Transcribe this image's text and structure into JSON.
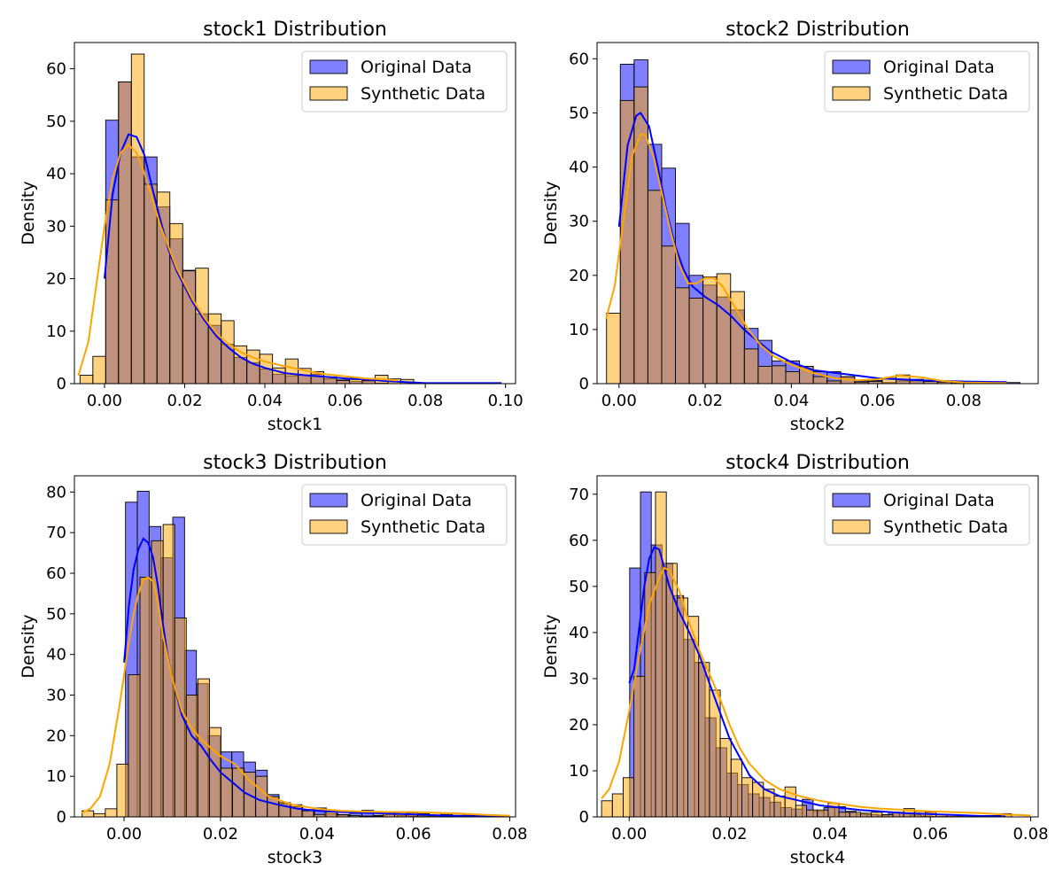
{
  "figure": {
    "background": "#ffffff"
  },
  "chart_data": [
    {
      "type": "histogram",
      "title": "stock1 Distribution",
      "xlabel": "stock1",
      "ylabel": "Density",
      "xlim": [
        -0.0075,
        0.1025
      ],
      "ylim": [
        0,
        65
      ],
      "xticks": [
        0.0,
        0.02,
        0.04,
        0.06,
        0.08,
        0.1
      ],
      "xtick_labels": [
        "0.00",
        "0.02",
        "0.04",
        "0.06",
        "0.08",
        "0.10"
      ],
      "yticks": [
        0,
        10,
        20,
        30,
        40,
        50,
        60
      ],
      "ytick_labels": [
        "0",
        "10",
        "20",
        "30",
        "40",
        "50",
        "60"
      ],
      "legend": {
        "position": "upper right"
      },
      "series": [
        {
          "name": "Original Data",
          "color": "#0000ff",
          "bin_start": 0.0003,
          "bin_width": 0.0032,
          "values": [
            50.2,
            57.5,
            43.2,
            43.2,
            33.7,
            27.6,
            21.6,
            13.3,
            11.1,
            7.5,
            5.0,
            4.0,
            2.8,
            1.8,
            1.5,
            1.6,
            1.8,
            0.9,
            0.7,
            0.4,
            0.5,
            0.1,
            0.0,
            0.0,
            0.0,
            0.0,
            0.0,
            0.0,
            0.0,
            0.0,
            0.0,
            0.0,
            0.0,
            0.0,
            0.5
          ],
          "kde_x": [
            0.0,
            0.002,
            0.004,
            0.006,
            0.008,
            0.01,
            0.012,
            0.014,
            0.016,
            0.018,
            0.02,
            0.022,
            0.025,
            0.028,
            0.031,
            0.034,
            0.037,
            0.04,
            0.045,
            0.05,
            0.055,
            0.06,
            0.065,
            0.07,
            0.075,
            0.08,
            0.09,
            0.099
          ],
          "kde_y": [
            20,
            36,
            44,
            47.5,
            47,
            43.5,
            37,
            31,
            25.5,
            21.5,
            18.5,
            15.5,
            12,
            9,
            6.8,
            5,
            3.8,
            3,
            2,
            1.6,
            1.3,
            1,
            0.8,
            0.5,
            0.3,
            0.1,
            0.1,
            0.1
          ]
        },
        {
          "name": "Synthetic Data",
          "color": "#ffa500",
          "bin_start": -0.0061,
          "bin_width": 0.0032,
          "values": [
            1.6,
            5.2,
            35.0,
            57.5,
            62.8,
            38.0,
            36.5,
            30.5,
            21.5,
            22.0,
            13.3,
            12.0,
            7.2,
            6.4,
            5.6,
            3.0,
            4.7,
            2.9,
            2.3,
            1.3,
            0.6,
            0.8,
            0.6,
            1.6,
            0.9,
            0.8
          ],
          "kde_x": [
            -0.0065,
            -0.004,
            -0.002,
            0.0,
            0.002,
            0.004,
            0.006,
            0.008,
            0.01,
            0.012,
            0.014,
            0.016,
            0.018,
            0.02,
            0.022,
            0.025,
            0.028,
            0.031,
            0.034,
            0.037,
            0.04,
            0.045,
            0.05,
            0.055,
            0.06,
            0.065,
            0.07,
            0.073
          ],
          "kde_y": [
            1.5,
            8,
            19,
            30,
            39,
            44,
            45.5,
            44,
            40,
            35,
            30,
            26,
            22,
            19,
            16,
            12.5,
            9.5,
            7.5,
            6,
            5,
            4.2,
            3.3,
            2.5,
            1.8,
            1.4,
            1,
            0.8,
            0.6
          ]
        }
      ]
    },
    {
      "type": "histogram",
      "title": "stock2 Distribution",
      "xlabel": "stock2",
      "ylabel": "Density",
      "xlim": [
        -0.0051,
        0.0973
      ],
      "ylim": [
        0,
        63
      ],
      "xticks": [
        0.0,
        0.02,
        0.04,
        0.06,
        0.08
      ],
      "xtick_labels": [
        "0.00",
        "0.02",
        "0.04",
        "0.06",
        "0.08"
      ],
      "yticks": [
        0,
        10,
        20,
        30,
        40,
        50,
        60
      ],
      "ytick_labels": [
        "0",
        "10",
        "20",
        "30",
        "40",
        "50",
        "60"
      ],
      "legend": {
        "position": "upper right"
      },
      "series": [
        {
          "name": "Original Data",
          "color": "#0000ff",
          "bin_start": 0.0003,
          "bin_width": 0.0032,
          "values": [
            59.0,
            59.8,
            44.2,
            39.8,
            29.6,
            20.0,
            18.2,
            16.0,
            13.6,
            10.2,
            8.0,
            4.2,
            4.2,
            3.2,
            2.2,
            2.2,
            1.2,
            0.5,
            0.6,
            0.2,
            0.5,
            0.5,
            0.4,
            0.3,
            0.3,
            0.1,
            0.1,
            0.1,
            0.2
          ]
        },
        {
          "name": "Synthetic Data",
          "color": "#ffa500",
          "bin_start": -0.0029,
          "bin_width": 0.0032,
          "values": [
            13.0,
            52.3,
            54.8,
            35.7,
            25.4,
            17.7,
            15.8,
            19.7,
            20.3,
            17.0,
            6.4,
            3.2,
            3.3,
            2.2,
            3.2,
            1.3,
            0.5,
            1.3,
            0.3,
            0.4,
            1.0,
            1.6,
            0.8,
            0.4,
            0.3,
            0.2
          ]
        }
      ],
      "kde": [
        {
          "name": "Original Data",
          "x": [
            0.0,
            0.002,
            0.004,
            0.005,
            0.007,
            0.009,
            0.011,
            0.013,
            0.015,
            0.017,
            0.02,
            0.023,
            0.026,
            0.029,
            0.032,
            0.035,
            0.04,
            0.045,
            0.05,
            0.055,
            0.06,
            0.065,
            0.07,
            0.08,
            0.09
          ],
          "y": [
            29,
            44,
            49.5,
            50,
            47.5,
            40,
            32,
            25.5,
            21,
            18,
            16,
            14.5,
            12.5,
            10,
            8,
            6,
            4,
            2.5,
            2,
            1.5,
            1,
            0.8,
            0.6,
            0.4,
            0.3
          ]
        },
        {
          "name": "Synthetic Data",
          "x": [
            -0.003,
            -0.001,
            0.001,
            0.003,
            0.005,
            0.006,
            0.008,
            0.01,
            0.012,
            0.014,
            0.016,
            0.018,
            0.02,
            0.022,
            0.024,
            0.027,
            0.03,
            0.033,
            0.036,
            0.04,
            0.045,
            0.05,
            0.055,
            0.06,
            0.065,
            0.07,
            0.075,
            0.08,
            0.09
          ],
          "y": [
            12,
            18,
            30,
            42,
            46,
            46,
            42,
            35,
            28,
            22,
            18.5,
            18.5,
            19.5,
            19.5,
            18,
            14,
            10,
            7,
            5,
            3.5,
            2,
            1,
            0.6,
            0.8,
            1.5,
            1.2,
            0.5,
            0.2,
            0.1
          ]
        }
      ]
    },
    {
      "type": "histogram",
      "title": "stock3 Distribution",
      "xlabel": "stock3",
      "ylabel": "Density",
      "xlim": [
        -0.0103,
        0.0812
      ],
      "ylim": [
        0,
        84
      ],
      "xticks": [
        0.0,
        0.02,
        0.04,
        0.06,
        0.08
      ],
      "xtick_labels": [
        "0.00",
        "0.02",
        "0.04",
        "0.06",
        "0.08"
      ],
      "yticks": [
        0,
        10,
        20,
        30,
        40,
        50,
        60,
        70,
        80
      ],
      "ytick_labels": [
        "0",
        "10",
        "20",
        "30",
        "40",
        "50",
        "60",
        "70",
        "80"
      ],
      "legend": {
        "position": "upper right"
      },
      "series": [
        {
          "name": "Original Data",
          "color": "#0000ff",
          "bin_start": 0.0003,
          "bin_width": 0.00245,
          "values": [
            77.5,
            80.2,
            71.5,
            63.8,
            73.8,
            41.0,
            32.8,
            20.0,
            16.0,
            16.0,
            13.5,
            11.5,
            5.5,
            3.2,
            2.5,
            1.8,
            2.2,
            0.8,
            0.6,
            0.9,
            1.6,
            0.4,
            0.6,
            0.3,
            0.2,
            0.2,
            0.2,
            0.1,
            0.1,
            0.1,
            0.1,
            0.0,
            0.0
          ]
        },
        {
          "name": "Synthetic Data",
          "color": "#ffa500",
          "bin_start": -0.0087,
          "bin_width": 0.0024,
          "values": [
            1.5,
            0.8,
            2.0,
            13.0,
            35.0,
            59.0,
            68.0,
            72.0,
            49.0,
            30.0,
            34.0,
            22.0,
            12.0,
            12.0,
            11.0,
            10.0,
            5.0,
            3.5,
            3.0,
            1.5,
            0.6,
            1.2,
            0.5,
            0.3,
            0.2,
            0.2,
            0.8,
            1.2,
            1.0,
            0.8,
            1.1,
            0.6,
            0.4,
            0.4,
            0.3
          ]
        }
      ],
      "kde": [
        {
          "name": "Original Data",
          "x": [
            0.0,
            0.001,
            0.002,
            0.003,
            0.004,
            0.005,
            0.006,
            0.007,
            0.008,
            0.009,
            0.01,
            0.012,
            0.014,
            0.016,
            0.018,
            0.02,
            0.022,
            0.025,
            0.028,
            0.032,
            0.036,
            0.04,
            0.045,
            0.05,
            0.055,
            0.06,
            0.065,
            0.07,
            0.075,
            0.08
          ],
          "y": [
            38,
            52,
            61,
            66,
            68.5,
            67.5,
            64,
            57,
            48,
            40,
            34,
            25,
            20,
            17.5,
            14,
            11,
            9,
            6,
            4.2,
            3,
            2,
            1.5,
            1.2,
            1,
            0.8,
            0.6,
            0.4,
            0.2,
            0.1,
            0.05
          ]
        },
        {
          "name": "Synthetic Data",
          "x": [
            -0.0088,
            -0.007,
            -0.005,
            -0.003,
            -0.001,
            0.0,
            0.001,
            0.002,
            0.003,
            0.004,
            0.005,
            0.006,
            0.007,
            0.008,
            0.01,
            0.012,
            0.014,
            0.016,
            0.018,
            0.02,
            0.023,
            0.026,
            0.03,
            0.035,
            0.04,
            0.045,
            0.05,
            0.055,
            0.06,
            0.065,
            0.07,
            0.075,
            0.08
          ],
          "y": [
            1,
            2,
            5,
            13,
            27,
            35,
            43,
            50,
            55,
            58.5,
            59,
            58,
            53,
            45,
            34,
            26,
            22,
            19,
            17,
            15,
            13,
            9,
            5,
            3,
            2,
            1.5,
            1.3,
            1.2,
            1.2,
            1,
            0.8,
            0.5,
            0.3
          ]
        }
      ]
    },
    {
      "type": "histogram",
      "title": "stock4 Distribution",
      "xlabel": "stock4",
      "ylabel": "Density",
      "xlim": [
        -0.0064,
        0.0815
      ],
      "ylim": [
        0,
        74
      ],
      "xticks": [
        0.0,
        0.02,
        0.04,
        0.06,
        0.08
      ],
      "xtick_labels": [
        "0.00",
        "0.02",
        "0.04",
        "0.06",
        "0.08"
      ],
      "yticks": [
        0,
        10,
        20,
        30,
        40,
        50,
        60,
        70
      ],
      "ytick_labels": [
        "0",
        "10",
        "20",
        "30",
        "40",
        "50",
        "60",
        "70"
      ],
      "legend": {
        "position": "upper right"
      },
      "series": [
        {
          "name": "Original Data",
          "color": "#0000ff",
          "bin_start": 0.0001,
          "bin_width": 0.00215,
          "values": [
            54.0,
            70.5,
            59.0,
            55.0,
            48.0,
            38.5,
            33.5,
            21.5,
            15.0,
            9.5,
            7.0,
            5.0,
            4.2,
            3.2,
            2.0,
            1.7,
            3.8,
            1.2,
            2.0,
            2.2,
            1.2,
            0.6,
            0.5,
            0.4,
            1.0,
            0.8,
            0.4,
            0.2,
            0.1,
            0.1,
            0.1,
            0.0,
            0.0,
            0.0
          ]
        },
        {
          "name": "Synthetic Data",
          "color": "#ffa500",
          "bin_start": -0.0055,
          "bin_width": 0.00215,
          "values": [
            3.5,
            5.0,
            8.5,
            30.5,
            53.0,
            70.5,
            55.0,
            47.5,
            43.5,
            33.5,
            27.5,
            17.0,
            12.5,
            8.5,
            7.5,
            6.0,
            4.5,
            6.5,
            2.5,
            1.5,
            1.5,
            3.0,
            1.0,
            1.0,
            0.8,
            1.0,
            0.5,
            1.0,
            1.8,
            1.2,
            1.0,
            0.5,
            0.4,
            0.4,
            0.3,
            0.3,
            0.3,
            0.7
          ]
        }
      ],
      "kde": [
        {
          "name": "Original Data",
          "x": [
            0.0,
            0.001,
            0.002,
            0.003,
            0.004,
            0.005,
            0.006,
            0.007,
            0.008,
            0.01,
            0.012,
            0.014,
            0.016,
            0.018,
            0.02,
            0.022,
            0.024,
            0.027,
            0.03,
            0.034,
            0.038,
            0.042,
            0.046,
            0.05,
            0.055,
            0.06,
            0.065,
            0.07,
            0.075
          ],
          "y": [
            29,
            32,
            41,
            50,
            56,
            58.5,
            58,
            54,
            50,
            44.5,
            40,
            35,
            29,
            23,
            17,
            13,
            9,
            6,
            4.5,
            3.5,
            2.5,
            2,
            1.5,
            1.2,
            0.8,
            0.6,
            0.4,
            0.2,
            0.1
          ]
        },
        {
          "name": "Synthetic Data",
          "x": [
            -0.0055,
            -0.004,
            -0.002,
            0.0,
            0.002,
            0.004,
            0.006,
            0.007,
            0.008,
            0.01,
            0.012,
            0.014,
            0.016,
            0.018,
            0.02,
            0.022,
            0.024,
            0.027,
            0.03,
            0.034,
            0.038,
            0.042,
            0.046,
            0.05,
            0.055,
            0.06,
            0.065,
            0.07,
            0.075,
            0.08
          ],
          "y": [
            4,
            6,
            12,
            23,
            35,
            46,
            52,
            54,
            53.5,
            49,
            42,
            36,
            31,
            26,
            20,
            15,
            11.5,
            8,
            6,
            4.5,
            3.5,
            2.8,
            2.2,
            1.8,
            1.5,
            1.2,
            1,
            0.8,
            0.5,
            0.3
          ]
        }
      ]
    }
  ]
}
